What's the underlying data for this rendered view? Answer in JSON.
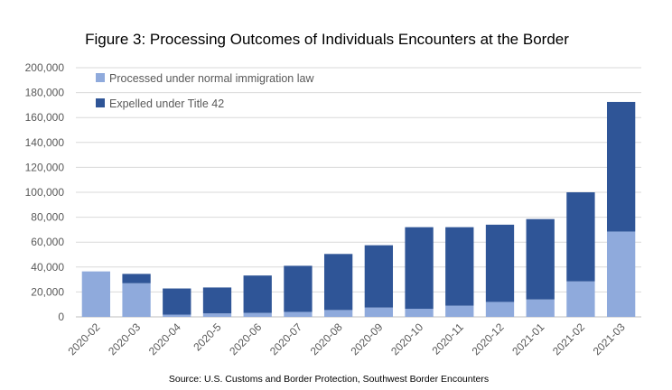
{
  "chart_data": {
    "type": "bar",
    "stacked": true,
    "title": "Figure 3: Processing Outcomes of Individuals Encounters at the Border",
    "source": "Source: U.S. Customs and Border Protection, Southwest Border Encounters",
    "categories": [
      "2020-02",
      "2020-03",
      "2020-04",
      "2020-5",
      "2020-06",
      "2020-07",
      "2020-08",
      "2020-09",
      "2020-10",
      "2020-11",
      "2020-12",
      "2021-01",
      "2021-02",
      "2021-03"
    ],
    "series": [
      {
        "name": "Processed under normal immigration law",
        "color": "#8faadc",
        "values": [
          36500,
          27000,
          1800,
          2800,
          3200,
          4000,
          5500,
          7500,
          6500,
          9000,
          12000,
          14000,
          28500,
          68500
        ]
      },
      {
        "name": "Expelled under Title 42",
        "color": "#2f5597",
        "values": [
          0,
          7500,
          21000,
          20800,
          30000,
          37000,
          45000,
          50000,
          65500,
          63000,
          62000,
          64500,
          71500,
          104000
        ]
      }
    ],
    "ylim": [
      0,
      200000
    ],
    "yticks": [
      0,
      20000,
      40000,
      60000,
      80000,
      100000,
      120000,
      140000,
      160000,
      180000,
      200000
    ],
    "ytick_labels": [
      "0",
      "20,000",
      "40,000",
      "60,000",
      "80,000",
      "100,000",
      "120,000",
      "140,000",
      "160,000",
      "180,000",
      "200,000"
    ],
    "grid": true,
    "legend_position": "top-left"
  }
}
